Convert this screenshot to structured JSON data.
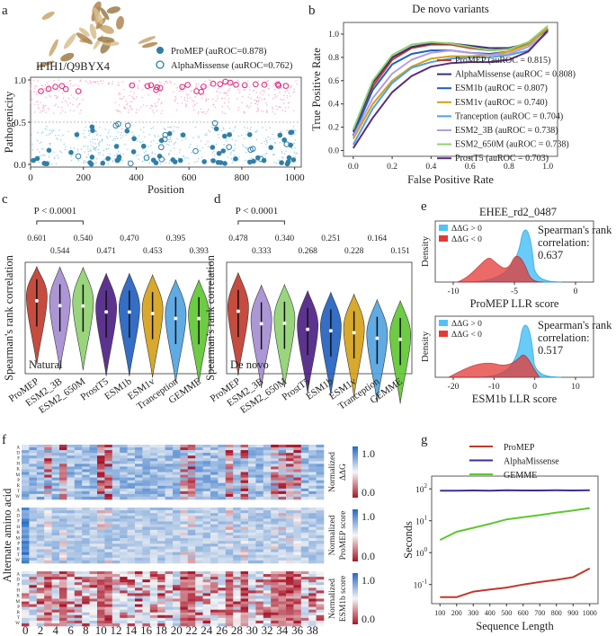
{
  "panel_letters": [
    "a",
    "b",
    "c",
    "d",
    "e",
    "f",
    "g"
  ],
  "chart_data": [
    {
      "panel": "a",
      "type": "scatter",
      "protein_label": "IFIH1/Q9BYX4",
      "xlabel": "Position",
      "ylabel": "Pathogenicity",
      "xticks": [
        "0",
        "200",
        "400",
        "600",
        "800",
        "1000"
      ],
      "yticks": [
        "0.0",
        "0.5",
        "1.0"
      ],
      "xlim": [
        0,
        1025
      ],
      "ylim": [
        0,
        1
      ],
      "legend": [
        "ProMEP (auROC=0.878)",
        "AlphaMissense (auROC=0.762)"
      ],
      "colors": {
        "promep": "#2f7fa8",
        "alphamissense": "#e0287a",
        "bg1": "#f6a7d0",
        "bg2": "#8ecae6"
      }
    },
    {
      "panel": "b",
      "type": "line",
      "title": "De novo variants",
      "xlabel": "False Positive Rate",
      "ylabel": "True Positive Rate",
      "xticks": [
        "0.0",
        "0.2",
        "0.4",
        "0.6",
        "0.8",
        "1.0"
      ],
      "yticks": [
        "0.0",
        "0.2",
        "0.4",
        "0.6",
        "0.8",
        "1.0"
      ],
      "xlim": [
        -0.05,
        1.05
      ],
      "ylim": [
        -0.05,
        1.1
      ],
      "series": [
        {
          "name": "ProMEP (auROC = 0.815)",
          "color": "#c0392b",
          "y": [
            0.12,
            0.55,
            0.78,
            0.88,
            0.91,
            0.91,
            0.88,
            0.86,
            0.87,
            0.92,
            1.05
          ]
        },
        {
          "name": "AlphaMissense (auROC = 0.808)",
          "color": "#3b2d7a",
          "y": [
            0.16,
            0.58,
            0.8,
            0.89,
            0.92,
            0.92,
            0.9,
            0.88,
            0.88,
            0.92,
            1.04
          ]
        },
        {
          "name": "ESM1b (auROC = 0.807)",
          "color": "#1f5fbf",
          "y": [
            0.13,
            0.52,
            0.74,
            0.83,
            0.86,
            0.86,
            0.84,
            0.83,
            0.85,
            0.91,
            1.05
          ]
        },
        {
          "name": "ESM1v (auROC = 0.740)",
          "color": "#d4a017",
          "y": [
            0.1,
            0.4,
            0.6,
            0.72,
            0.79,
            0.81,
            0.81,
            0.82,
            0.85,
            0.91,
            1.05
          ]
        },
        {
          "name": "Tranception (auROC = 0.704)",
          "color": "#4fa3e0",
          "y": [
            0.05,
            0.36,
            0.58,
            0.71,
            0.76,
            0.79,
            0.8,
            0.8,
            0.82,
            0.86,
            1.02
          ]
        },
        {
          "name": "ESM2_3B (auROC = 0.738)",
          "color": "#b39ddb",
          "y": [
            0.12,
            0.45,
            0.66,
            0.78,
            0.84,
            0.86,
            0.84,
            0.82,
            0.83,
            0.89,
            1.02
          ]
        },
        {
          "name": "ESM2_650M (auROC = 0.738)",
          "color": "#8fd16f",
          "y": [
            0.18,
            0.6,
            0.82,
            0.91,
            0.93,
            0.92,
            0.89,
            0.86,
            0.87,
            0.93,
            1.07
          ]
        },
        {
          "name": "ProstT5 (auROC = 0.703)",
          "color": "#5b2c83",
          "y": [
            0.02,
            0.28,
            0.5,
            0.64,
            0.72,
            0.75,
            0.76,
            0.76,
            0.78,
            0.85,
            1.03
          ]
        }
      ],
      "x": [
        0,
        0.1,
        0.2,
        0.3,
        0.4,
        0.5,
        0.6,
        0.7,
        0.8,
        0.9,
        1.0
      ]
    },
    {
      "panel": "c",
      "type": "violin",
      "ylabel": "Spearman's rank correlation",
      "corner_label": "Natural",
      "pvalue": "P < 0.0001",
      "categories": [
        "ProMEP",
        "ESM2_3B",
        "ESM2_650M",
        "ProstT5",
        "ESM1b",
        "ESM1v",
        "Tranception",
        "GEMME"
      ],
      "value_labels": [
        "0.601",
        "0.544",
        "0.540",
        "0.471",
        "0.470",
        "0.453",
        "0.395",
        "0.393"
      ],
      "values": [
        0.601,
        0.544,
        0.54,
        0.471,
        0.47,
        0.453,
        0.395,
        0.393
      ]
    },
    {
      "panel": "d",
      "type": "violin",
      "ylabel": "Spearman's rank correlation",
      "corner_label": "De novo",
      "pvalue": "P < 0.0001",
      "categories": [
        "ProMEP",
        "ESM2_3B",
        "ESM2_650M",
        "ProstT5",
        "ESM1b",
        "ESM1v",
        "Tranception",
        "GEMME"
      ],
      "value_labels": [
        "0.478",
        "0.333",
        "0.340",
        "0.268",
        "0.251",
        "0.228",
        "0.164",
        "0.151"
      ],
      "values": [
        0.478,
        0.333,
        0.34,
        0.268,
        0.251,
        0.228,
        0.164,
        0.151
      ]
    },
    {
      "panel": "e",
      "type": "density",
      "title": "EHEE_rd2_0487",
      "subplots": [
        {
          "xlabel": "ProMEP LLR score",
          "ylabel": "Density",
          "xticks": [
            "-10",
            "-5",
            "0"
          ],
          "legend": [
            "ΔΔG > 0",
            "ΔΔG < 0"
          ],
          "annotation": [
            "Spearman's rank",
            "correlation:",
            "0.637"
          ]
        },
        {
          "xlabel": "ESM1b LLR score",
          "ylabel": "Density",
          "xticks": [
            "-20",
            "-10",
            "0",
            "10"
          ],
          "legend": [
            "ΔΔG > 0",
            "ΔΔG < 0"
          ],
          "annotation": [
            "Spearman's rank",
            "correlation:",
            "0.517"
          ]
        }
      ]
    },
    {
      "panel": "f",
      "type": "heatmap",
      "ylabel": "Alternate amino acid",
      "xticks": [
        "0",
        "2",
        "4",
        "6",
        "8",
        "10",
        "12",
        "14",
        "16",
        "18",
        "20",
        "22",
        "24",
        "26",
        "28",
        "30",
        "32",
        "34",
        "36",
        "38"
      ],
      "rows": [
        "A",
        "C",
        "D",
        "E",
        "F",
        "G",
        "H",
        "I",
        "K",
        "L",
        "M",
        "N",
        "P",
        "Q",
        "R",
        "S",
        "T",
        "V",
        "W",
        "Y"
      ],
      "blocks": [
        {
          "label": [
            "Normalized",
            "ΔΔG"
          ],
          "cbar": [
            "1.0",
            "0.0"
          ]
        },
        {
          "label": [
            "Normalized",
            "ProMEP score"
          ],
          "cbar": [
            "1.0",
            "0.0"
          ]
        },
        {
          "label": [
            "Normalized",
            "ESM1b score"
          ],
          "cbar": [
            "1.0",
            "0.0"
          ]
        }
      ]
    },
    {
      "panel": "g",
      "type": "line",
      "xlabel": "Sequence Length",
      "ylabel": "Seconds",
      "xticks": [
        "100",
        "200",
        "300",
        "400",
        "500",
        "600",
        "700",
        "800",
        "900",
        "1000"
      ],
      "yticks": [
        "10^2",
        "10^1",
        "10^0",
        "10^-1"
      ],
      "yscale": "log",
      "x": [
        100,
        200,
        300,
        400,
        500,
        600,
        700,
        800,
        900,
        1000
      ],
      "series": [
        {
          "name": "ProMEP",
          "color": "#c0392b",
          "values": [
            0.04,
            0.04,
            0.06,
            0.07,
            0.08,
            0.1,
            0.12,
            0.14,
            0.17,
            0.32
          ]
        },
        {
          "name": "AlphaMissense",
          "color": "#3b2d9a",
          "values": [
            88,
            88,
            89,
            88,
            90,
            89,
            89,
            90,
            89,
            91
          ]
        },
        {
          "name": "GEMME",
          "color": "#5ec72f",
          "values": [
            2.5,
            4.5,
            6,
            8,
            11,
            13,
            15,
            18,
            21,
            25
          ]
        }
      ]
    }
  ]
}
